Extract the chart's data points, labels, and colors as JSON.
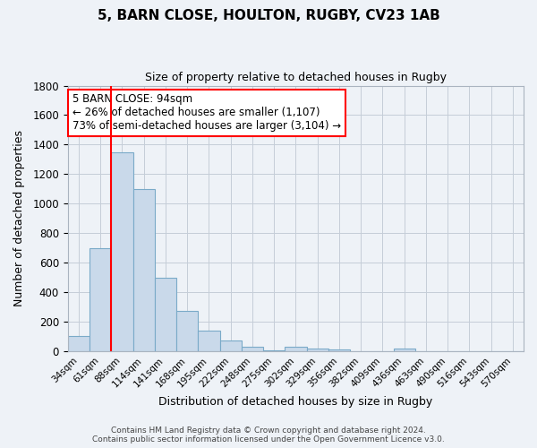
{
  "title": "5, BARN CLOSE, HOULTON, RUGBY, CV23 1AB",
  "subtitle": "Size of property relative to detached houses in Rugby",
  "xlabel": "Distribution of detached houses by size in Rugby",
  "ylabel": "Number of detached properties",
  "bar_labels": [
    "34sqm",
    "61sqm",
    "88sqm",
    "114sqm",
    "141sqm",
    "168sqm",
    "195sqm",
    "222sqm",
    "248sqm",
    "275sqm",
    "302sqm",
    "329sqm",
    "356sqm",
    "382sqm",
    "409sqm",
    "436sqm",
    "463sqm",
    "490sqm",
    "516sqm",
    "543sqm",
    "570sqm"
  ],
  "bar_values": [
    100,
    700,
    1350,
    1100,
    500,
    275,
    140,
    75,
    30,
    5,
    30,
    15,
    10,
    0,
    0,
    20,
    0,
    0,
    0,
    0,
    0
  ],
  "bar_color": "#c9d9ea",
  "bar_edgecolor": "#7aaac8",
  "red_line_index": 2,
  "ylim": [
    0,
    1800
  ],
  "yticks": [
    0,
    200,
    400,
    600,
    800,
    1000,
    1200,
    1400,
    1600,
    1800
  ],
  "annotation_title": "5 BARN CLOSE: 94sqm",
  "annotation_line1": "← 26% of detached houses are smaller (1,107)",
  "annotation_line2": "73% of semi-detached houses are larger (3,104) →",
  "footer1": "Contains HM Land Registry data © Crown copyright and database right 2024.",
  "footer2": "Contains public sector information licensed under the Open Government Licence v3.0.",
  "bg_color": "#eef2f7",
  "plot_bg_color": "#eef2f7",
  "grid_color": "#c5cdd8"
}
